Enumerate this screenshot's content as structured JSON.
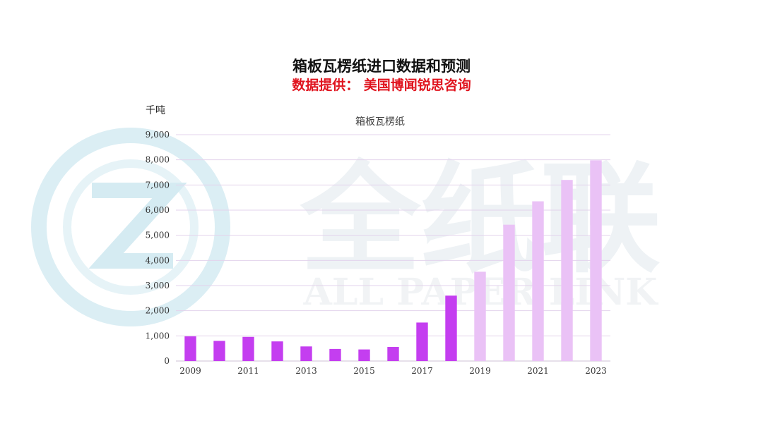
{
  "header": {
    "title": "箱板瓦楞纸进口数据和预测",
    "subtitle": "数据提供： 美国博闻锐思咨询"
  },
  "unit_label": "千吨",
  "watermark": {
    "cn_text": "全纸联",
    "en_text": "ALL PAPER LINK",
    "color": "#c9e4ee"
  },
  "chart_data": {
    "type": "bar",
    "title": "箱板瓦楞纸",
    "ylabel": "千吨",
    "xlabel": "",
    "ylim": [
      0,
      9000
    ],
    "yticks": [
      "0",
      "1,000",
      "2,000",
      "3,000",
      "4,000",
      "5,000",
      "6,000",
      "7,000",
      "8,000",
      "9,000"
    ],
    "ytick_values": [
      0,
      1000,
      2000,
      3000,
      4000,
      5000,
      6000,
      7000,
      8000,
      9000
    ],
    "categories": [
      "2009",
      "2010",
      "2011",
      "2012",
      "2013",
      "2014",
      "2015",
      "2016",
      "2017",
      "2018",
      "2019",
      "2020",
      "2021",
      "2022",
      "2023"
    ],
    "xtick_labels": [
      "2009",
      "",
      "2011",
      "",
      "2013",
      "",
      "2015",
      "",
      "2017",
      "",
      "2019",
      "",
      "2021",
      "",
      "2023"
    ],
    "values": [
      980,
      800,
      960,
      780,
      580,
      480,
      460,
      560,
      1530,
      2600,
      3550,
      5420,
      6350,
      7200,
      7980
    ],
    "colors": [
      "#c43ef0",
      "#c43ef0",
      "#c43ef0",
      "#c43ef0",
      "#c43ef0",
      "#c43ef0",
      "#c43ef0",
      "#c43ef0",
      "#c43ef0",
      "#c43ef0",
      "#eac2f6",
      "#eac2f6",
      "#eac2f6",
      "#eac2f6",
      "#eac2f6"
    ],
    "grid": true,
    "grid_color": "#e3d3ec"
  }
}
